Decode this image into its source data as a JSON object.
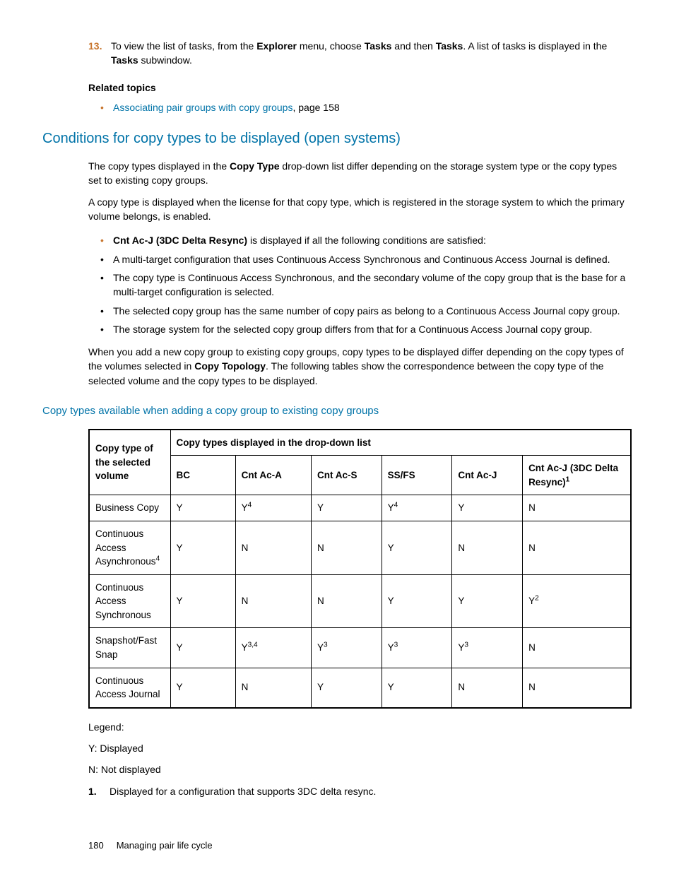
{
  "step": {
    "num": "13.",
    "pre": "To view the list of tasks, from the ",
    "b1": "Explorer",
    "mid1": " menu, choose ",
    "b2": "Tasks",
    "mid2": " and then ",
    "b3": "Tasks",
    "mid3": ". A list of tasks is displayed in the ",
    "b4": "Tasks",
    "post": " subwindow."
  },
  "related": {
    "heading": "Related topics",
    "item_link": "Associating pair groups with copy groups",
    "item_tail": ", page 158"
  },
  "h2": "Conditions for copy types to be displayed (open systems)",
  "p1": {
    "pre": "The copy types displayed in the ",
    "b": "Copy Type",
    "post": " drop-down list differ depending on the storage system type or the copy types set to existing copy groups."
  },
  "p2": "A copy type is displayed when the license for that copy type, which is registered in the storage system to which the primary volume belongs, is enabled.",
  "conds": {
    "c0b": "Cnt Ac-J (3DC Delta Resync)",
    "c0t": " is displayed if all the following conditions are satisfied:",
    "c1": "A multi-target configuration that uses Continuous Access Synchronous and Continuous Access Journal is defined.",
    "c2": "The copy type is Continuous Access Synchronous, and the secondary volume of the copy group that is the base for a multi-target configuration is selected.",
    "c3": "The selected copy group has the same number of copy pairs as belong to a Continuous Access Journal copy group.",
    "c4": "The storage system for the selected copy group differs from that for a Continuous Access Journal copy group."
  },
  "p3": {
    "pre": "When you add a new copy group to existing copy groups, copy types to be displayed differ depending on the copy types of the volumes selected in ",
    "b": "Copy Topology",
    "post": ". The following tables show the correspondence between the copy type of the selected volume and the copy types to be displayed."
  },
  "table_caption": "Copy types available when adding a copy group to existing copy groups",
  "table": {
    "row_header": "Copy type of the selected volume",
    "group_header": "Copy types displayed in the drop-down list",
    "cols": [
      "BC",
      "Cnt Ac-A",
      "Cnt Ac-S",
      "SS/FS",
      "Cnt Ac-J"
    ],
    "last_col_pre": "Cnt Ac-J (3DC Delta Resync)",
    "last_col_sup": "1",
    "rows": [
      {
        "label": "Business Copy",
        "bc": "Y",
        "aca": "Y",
        "aca_sup": "4",
        "acs": "Y",
        "ssfs": "Y",
        "ssfs_sup": "4",
        "acj": "Y",
        "dr": "N"
      },
      {
        "label": "Continuous Access Asynchronous",
        "label_sup": "4",
        "bc": "Y",
        "aca": "N",
        "acs": "N",
        "ssfs": "Y",
        "acj": "N",
        "dr": "N"
      },
      {
        "label": "Continuous Access Synchronous",
        "bc": "Y",
        "aca": "N",
        "acs": "N",
        "ssfs": "Y",
        "acj": "Y",
        "dr": "Y",
        "dr_sup": "2"
      },
      {
        "label": "Snapshot/Fast Snap",
        "bc": "Y",
        "aca": "Y",
        "aca_sup": "3,4",
        "acs": "Y",
        "acs_sup": "3",
        "ssfs": "Y",
        "ssfs_sup": "3",
        "acj": "Y",
        "acj_sup": "3",
        "dr": "N"
      },
      {
        "label": "Continuous Access Journal",
        "bc": "Y",
        "aca": "N",
        "acs": "Y",
        "ssfs": "Y",
        "acj": "N",
        "dr": "N"
      }
    ]
  },
  "legend": {
    "title": "Legend:",
    "y": "Y: Displayed",
    "n": "N: Not displayed"
  },
  "footnote": {
    "num": "1.",
    "text": "Displayed for a configuration that supports 3DC delta resync."
  },
  "footer": {
    "page": "180",
    "title": "Managing pair life cycle"
  }
}
